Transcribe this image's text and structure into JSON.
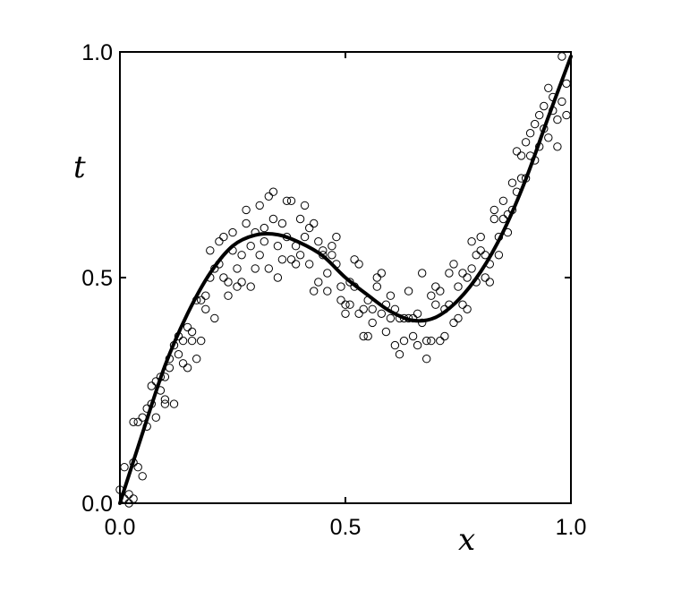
{
  "chart_data": {
    "type": "scatter",
    "title": "",
    "xlabel": "x",
    "ylabel": "t",
    "xlim": [
      0,
      1
    ],
    "ylim": [
      0,
      1
    ],
    "xticks": [
      {
        "value": 0,
        "label": "0.0"
      },
      {
        "value": 0.5,
        "label": "0.5"
      },
      {
        "value": 1,
        "label": "1.0"
      }
    ],
    "yticks": [
      {
        "value": 0,
        "label": "0.0"
      },
      {
        "value": 0.5,
        "label": "0.5"
      },
      {
        "value": 1,
        "label": "1.0"
      }
    ],
    "grid": false,
    "legend": "none",
    "marker": "open-circle",
    "line_color": "#000000",
    "points": [
      [
        0.0,
        0.03
      ],
      [
        0.01,
        0.08
      ],
      [
        0.01,
        0.01
      ],
      [
        0.02,
        0.0
      ],
      [
        0.02,
        0.02
      ],
      [
        0.03,
        0.01
      ],
      [
        0.03,
        0.09
      ],
      [
        0.03,
        0.18
      ],
      [
        0.04,
        0.18
      ],
      [
        0.04,
        0.08
      ],
      [
        0.05,
        0.06
      ],
      [
        0.05,
        0.19
      ],
      [
        0.06,
        0.17
      ],
      [
        0.06,
        0.21
      ],
      [
        0.07,
        0.22
      ],
      [
        0.07,
        0.26
      ],
      [
        0.08,
        0.19
      ],
      [
        0.08,
        0.27
      ],
      [
        0.09,
        0.28
      ],
      [
        0.09,
        0.25
      ],
      [
        0.1,
        0.23
      ],
      [
        0.1,
        0.28
      ],
      [
        0.1,
        0.22
      ],
      [
        0.11,
        0.32
      ],
      [
        0.11,
        0.3
      ],
      [
        0.12,
        0.22
      ],
      [
        0.12,
        0.35
      ],
      [
        0.13,
        0.37
      ],
      [
        0.13,
        0.33
      ],
      [
        0.14,
        0.31
      ],
      [
        0.14,
        0.36
      ],
      [
        0.15,
        0.3
      ],
      [
        0.15,
        0.39
      ],
      [
        0.16,
        0.38
      ],
      [
        0.16,
        0.36
      ],
      [
        0.17,
        0.32
      ],
      [
        0.17,
        0.45
      ],
      [
        0.18,
        0.45
      ],
      [
        0.18,
        0.36
      ],
      [
        0.19,
        0.43
      ],
      [
        0.19,
        0.46
      ],
      [
        0.2,
        0.5
      ],
      [
        0.2,
        0.56
      ],
      [
        0.21,
        0.52
      ],
      [
        0.21,
        0.41
      ],
      [
        0.22,
        0.58
      ],
      [
        0.22,
        0.53
      ],
      [
        0.23,
        0.59
      ],
      [
        0.23,
        0.5
      ],
      [
        0.24,
        0.46
      ],
      [
        0.24,
        0.49
      ],
      [
        0.25,
        0.56
      ],
      [
        0.25,
        0.6
      ],
      [
        0.26,
        0.48
      ],
      [
        0.26,
        0.52
      ],
      [
        0.27,
        0.49
      ],
      [
        0.27,
        0.55
      ],
      [
        0.28,
        0.62
      ],
      [
        0.28,
        0.65
      ],
      [
        0.29,
        0.48
      ],
      [
        0.29,
        0.57
      ],
      [
        0.3,
        0.52
      ],
      [
        0.3,
        0.6
      ],
      [
        0.31,
        0.66
      ],
      [
        0.31,
        0.55
      ],
      [
        0.32,
        0.58
      ],
      [
        0.32,
        0.61
      ],
      [
        0.33,
        0.68
      ],
      [
        0.33,
        0.52
      ],
      [
        0.34,
        0.63
      ],
      [
        0.34,
        0.69
      ],
      [
        0.35,
        0.5
      ],
      [
        0.35,
        0.57
      ],
      [
        0.36,
        0.54
      ],
      [
        0.36,
        0.62
      ],
      [
        0.37,
        0.67
      ],
      [
        0.37,
        0.59
      ],
      [
        0.38,
        0.67
      ],
      [
        0.38,
        0.54
      ],
      [
        0.39,
        0.57
      ],
      [
        0.39,
        0.53
      ],
      [
        0.4,
        0.63
      ],
      [
        0.4,
        0.55
      ],
      [
        0.41,
        0.66
      ],
      [
        0.41,
        0.59
      ],
      [
        0.42,
        0.61
      ],
      [
        0.42,
        0.53
      ],
      [
        0.43,
        0.62
      ],
      [
        0.43,
        0.47
      ],
      [
        0.44,
        0.49
      ],
      [
        0.44,
        0.58
      ],
      [
        0.45,
        0.55
      ],
      [
        0.45,
        0.56
      ],
      [
        0.46,
        0.51
      ],
      [
        0.46,
        0.47
      ],
      [
        0.47,
        0.55
      ],
      [
        0.47,
        0.57
      ],
      [
        0.48,
        0.59
      ],
      [
        0.48,
        0.53
      ],
      [
        0.49,
        0.48
      ],
      [
        0.49,
        0.45
      ],
      [
        0.5,
        0.44
      ],
      [
        0.5,
        0.42
      ],
      [
        0.51,
        0.49
      ],
      [
        0.51,
        0.44
      ],
      [
        0.52,
        0.54
      ],
      [
        0.52,
        0.48
      ],
      [
        0.53,
        0.42
      ],
      [
        0.53,
        0.53
      ],
      [
        0.54,
        0.43
      ],
      [
        0.54,
        0.37
      ],
      [
        0.55,
        0.37
      ],
      [
        0.55,
        0.45
      ],
      [
        0.56,
        0.43
      ],
      [
        0.56,
        0.4
      ],
      [
        0.57,
        0.5
      ],
      [
        0.57,
        0.48
      ],
      [
        0.58,
        0.42
      ],
      [
        0.58,
        0.51
      ],
      [
        0.59,
        0.38
      ],
      [
        0.59,
        0.44
      ],
      [
        0.6,
        0.41
      ],
      [
        0.6,
        0.46
      ],
      [
        0.61,
        0.43
      ],
      [
        0.61,
        0.35
      ],
      [
        0.62,
        0.41
      ],
      [
        0.62,
        0.33
      ],
      [
        0.63,
        0.41
      ],
      [
        0.63,
        0.36
      ],
      [
        0.64,
        0.47
      ],
      [
        0.64,
        0.41
      ],
      [
        0.65,
        0.37
      ],
      [
        0.65,
        0.41
      ],
      [
        0.66,
        0.35
      ],
      [
        0.66,
        0.42
      ],
      [
        0.67,
        0.4
      ],
      [
        0.67,
        0.51
      ],
      [
        0.68,
        0.32
      ],
      [
        0.68,
        0.36
      ],
      [
        0.69,
        0.46
      ],
      [
        0.69,
        0.36
      ],
      [
        0.7,
        0.44
      ],
      [
        0.7,
        0.48
      ],
      [
        0.71,
        0.36
      ],
      [
        0.71,
        0.47
      ],
      [
        0.72,
        0.43
      ],
      [
        0.72,
        0.37
      ],
      [
        0.73,
        0.51
      ],
      [
        0.73,
        0.44
      ],
      [
        0.74,
        0.4
      ],
      [
        0.74,
        0.53
      ],
      [
        0.75,
        0.48
      ],
      [
        0.75,
        0.41
      ],
      [
        0.76,
        0.44
      ],
      [
        0.76,
        0.51
      ],
      [
        0.77,
        0.43
      ],
      [
        0.77,
        0.5
      ],
      [
        0.78,
        0.52
      ],
      [
        0.78,
        0.58
      ],
      [
        0.79,
        0.55
      ],
      [
        0.79,
        0.49
      ],
      [
        0.8,
        0.56
      ],
      [
        0.8,
        0.59
      ],
      [
        0.81,
        0.55
      ],
      [
        0.81,
        0.5
      ],
      [
        0.82,
        0.49
      ],
      [
        0.82,
        0.53
      ],
      [
        0.83,
        0.63
      ],
      [
        0.83,
        0.65
      ],
      [
        0.84,
        0.55
      ],
      [
        0.84,
        0.59
      ],
      [
        0.85,
        0.63
      ],
      [
        0.85,
        0.67
      ],
      [
        0.86,
        0.6
      ],
      [
        0.86,
        0.64
      ],
      [
        0.87,
        0.71
      ],
      [
        0.87,
        0.65
      ],
      [
        0.88,
        0.69
      ],
      [
        0.88,
        0.78
      ],
      [
        0.89,
        0.72
      ],
      [
        0.89,
        0.77
      ],
      [
        0.9,
        0.8
      ],
      [
        0.9,
        0.72
      ],
      [
        0.91,
        0.77
      ],
      [
        0.91,
        0.82
      ],
      [
        0.92,
        0.84
      ],
      [
        0.92,
        0.76
      ],
      [
        0.93,
        0.86
      ],
      [
        0.93,
        0.79
      ],
      [
        0.94,
        0.88
      ],
      [
        0.94,
        0.83
      ],
      [
        0.95,
        0.81
      ],
      [
        0.95,
        0.92
      ],
      [
        0.96,
        0.87
      ],
      [
        0.96,
        0.9
      ],
      [
        0.97,
        0.85
      ],
      [
        0.97,
        0.79
      ],
      [
        0.98,
        0.99
      ],
      [
        0.98,
        0.89
      ],
      [
        0.99,
        0.86
      ],
      [
        0.99,
        0.93
      ]
    ],
    "curve": {
      "name": "",
      "x": [
        0.0,
        0.05,
        0.1,
        0.15,
        0.2,
        0.25,
        0.3,
        0.35,
        0.4,
        0.45,
        0.5,
        0.55,
        0.6,
        0.65,
        0.7,
        0.75,
        0.8,
        0.85,
        0.9,
        0.95,
        1.0
      ],
      "y": [
        0.0,
        0.155,
        0.305,
        0.42,
        0.51,
        0.57,
        0.594,
        0.595,
        0.577,
        0.548,
        0.5,
        0.461,
        0.425,
        0.405,
        0.412,
        0.45,
        0.513,
        0.602,
        0.718,
        0.856,
        0.99
      ]
    }
  }
}
